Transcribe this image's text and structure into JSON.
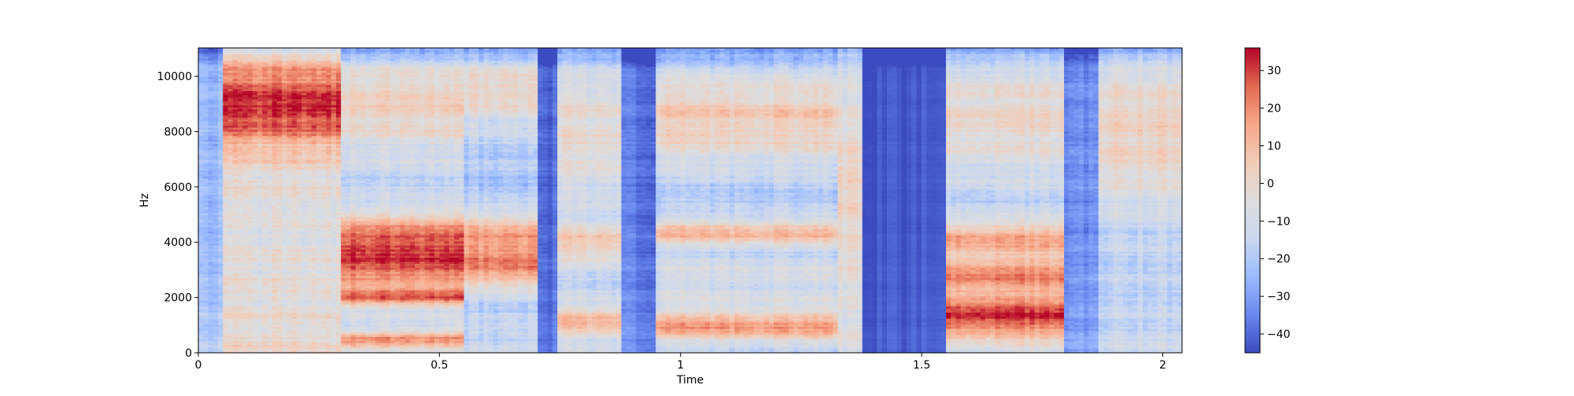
{
  "chart_data": {
    "type": "heatmap",
    "title": "",
    "xlabel": "Time",
    "ylabel": "Hz",
    "xlim": [
      0,
      2.04
    ],
    "ylim": [
      0,
      11025
    ],
    "x_ticks": [
      0,
      0.5,
      1,
      1.5,
      2
    ],
    "x_tick_labels": [
      "0",
      "0.5",
      "1",
      "1.5",
      "2"
    ],
    "y_ticks": [
      0,
      2000,
      4000,
      6000,
      8000,
      10000
    ],
    "y_tick_labels": [
      "0",
      "2000",
      "4000",
      "6000",
      "8000",
      "10000"
    ],
    "colorbar": {
      "vmin": -45,
      "vmax": 36,
      "ticks": [
        -40,
        -30,
        -20,
        -10,
        0,
        10,
        20,
        30
      ],
      "tick_labels": [
        "−40",
        "−30",
        "−20",
        "−10",
        "0",
        "10",
        "20",
        "30"
      ],
      "colormap": "coolwarm",
      "colormap_stops": [
        "#3b4cc0",
        "#6788ee",
        "#9abbff",
        "#c9d7f0",
        "#dddddd",
        "#f2cbb7",
        "#f7a889",
        "#e26952",
        "#b40426"
      ]
    },
    "segments": [
      {
        "t0": 0.0,
        "t1": 0.05,
        "level": -25,
        "energy": 0.45,
        "low_boost": 0.35,
        "bands": []
      },
      {
        "t0": 0.05,
        "t1": 0.3,
        "level": -5,
        "energy": 0.7,
        "low_boost": 0.2,
        "bands": [
          [
            9500,
            2000,
            18
          ],
          [
            8600,
            1200,
            12
          ]
        ]
      },
      {
        "t0": 0.3,
        "t1": 0.55,
        "level": -18,
        "energy": 0.65,
        "low_boost": 0.5,
        "bands": [
          [
            4200,
            900,
            20
          ],
          [
            3000,
            900,
            16
          ],
          [
            2000,
            300,
            12
          ],
          [
            500,
            250,
            14
          ],
          [
            9000,
            1800,
            2
          ]
        ]
      },
      {
        "t0": 0.55,
        "t1": 0.7,
        "level": -22,
        "energy": 0.6,
        "low_boost": 0.5,
        "bands": [
          [
            4200,
            900,
            14
          ],
          [
            3000,
            700,
            10
          ],
          [
            9500,
            1500,
            0
          ]
        ]
      },
      {
        "t0": 0.7,
        "t1": 0.74,
        "level": -40,
        "energy": 0.3,
        "low_boost": 0.2,
        "bands": []
      },
      {
        "t0": 0.74,
        "t1": 0.88,
        "level": -18,
        "energy": 0.6,
        "low_boost": 0.5,
        "bands": [
          [
            4000,
            700,
            4
          ],
          [
            1200,
            500,
            6
          ],
          [
            8000,
            2500,
            -2
          ]
        ]
      },
      {
        "t0": 0.88,
        "t1": 0.95,
        "level": -38,
        "energy": 0.35,
        "low_boost": 0.3,
        "bands": []
      },
      {
        "t0": 0.95,
        "t1": 1.33,
        "level": -22,
        "energy": 0.6,
        "low_boost": 0.45,
        "bands": [
          [
            8500,
            1800,
            4
          ],
          [
            4400,
            500,
            8
          ],
          [
            1000,
            500,
            10
          ],
          [
            2600,
            1200,
            -12
          ]
        ]
      },
      {
        "t0": 1.33,
        "t1": 1.38,
        "level": -15,
        "energy": 0.55,
        "low_boost": 0.4,
        "bands": [
          [
            6000,
            4000,
            0
          ]
        ]
      },
      {
        "t0": 1.38,
        "t1": 1.55,
        "level": -43,
        "energy": 0.1,
        "low_boost": 0.1,
        "bands": []
      },
      {
        "t0": 1.55,
        "t1": 1.8,
        "level": -18,
        "energy": 0.6,
        "low_boost": 0.5,
        "bands": [
          [
            1300,
            700,
            26
          ],
          [
            2800,
            800,
            16
          ],
          [
            4200,
            600,
            12
          ],
          [
            8500,
            2000,
            0
          ]
        ]
      },
      {
        "t0": 1.8,
        "t1": 1.87,
        "level": -35,
        "energy": 0.4,
        "low_boost": 0.3,
        "bands": []
      },
      {
        "t0": 1.87,
        "t1": 2.04,
        "level": -20,
        "energy": 0.55,
        "low_boost": 0.4,
        "bands": [
          [
            8000,
            3000,
            2
          ]
        ]
      }
    ]
  }
}
